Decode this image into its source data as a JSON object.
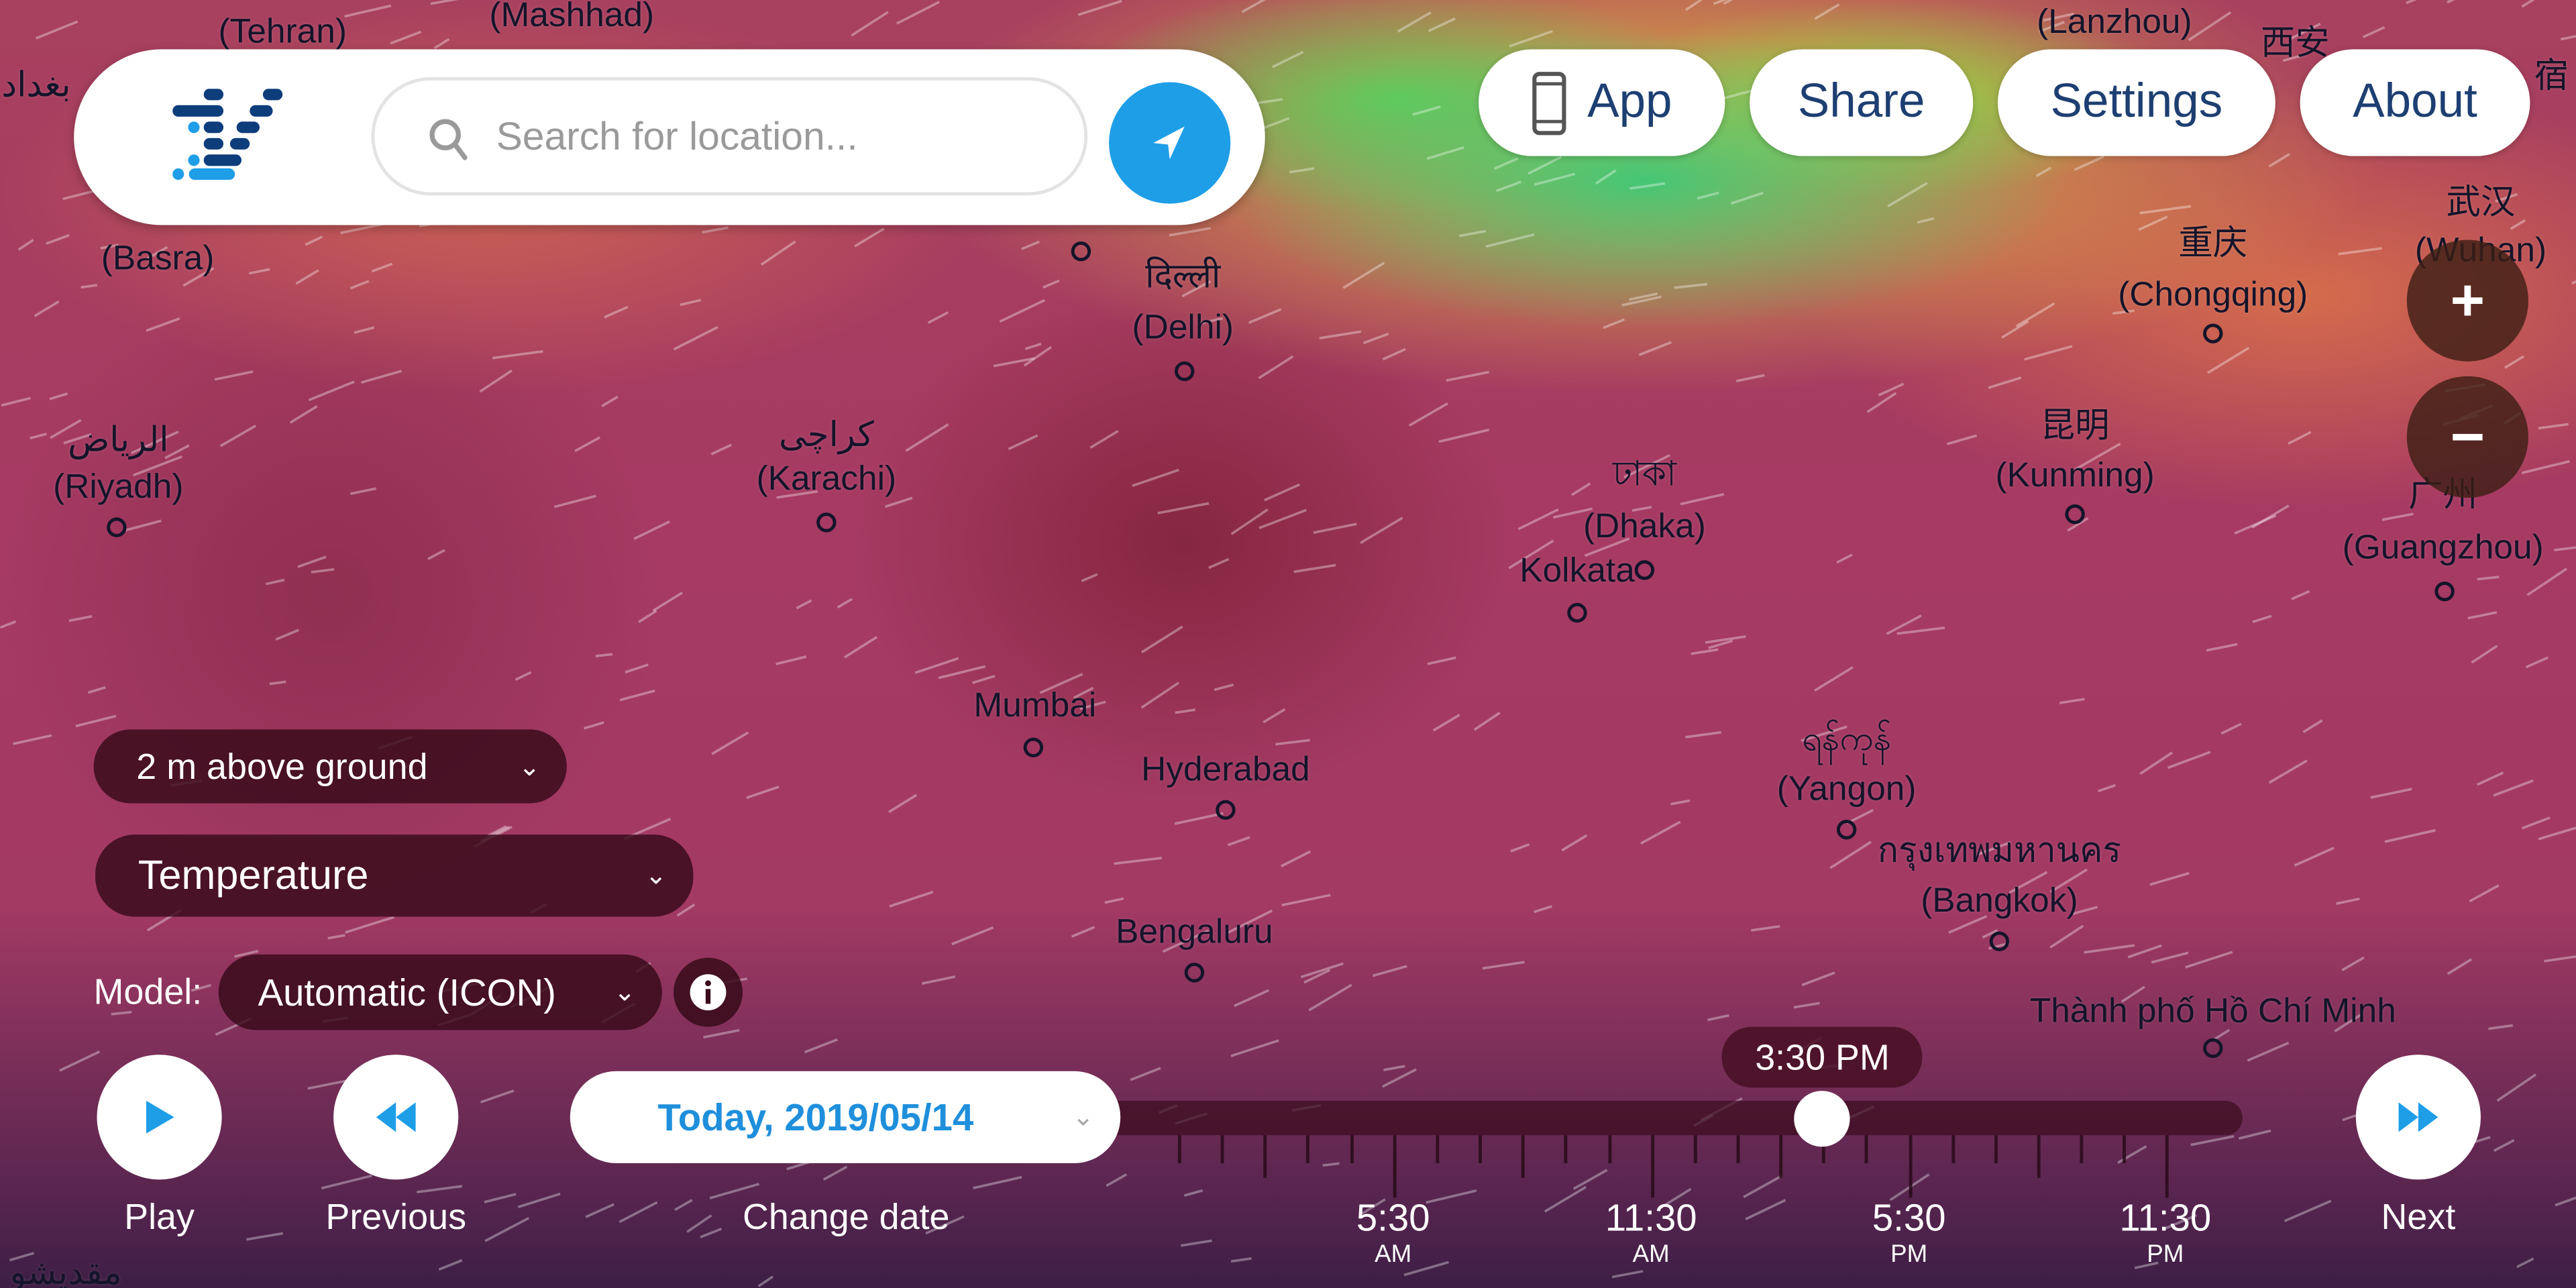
{
  "search": {
    "placeholder": "Search for location..."
  },
  "header": {
    "app": "App",
    "share": "Share",
    "settings": "Settings",
    "about": "About"
  },
  "zoom": {
    "in": "+",
    "out": "−"
  },
  "controls": {
    "level": "2 m above ground",
    "variable": "Temperature",
    "model_label": "Model:",
    "model": "Automatic (ICON)",
    "play": "Play",
    "previous": "Previous",
    "change_date": "Change date",
    "next": "Next",
    "date": "Today, 2019/05/14"
  },
  "timeline": {
    "current": "3:30 PM",
    "selected_hour": 15.5,
    "labels": [
      {
        "time": "5:30",
        "ampm": "AM"
      },
      {
        "time": "11:30",
        "ampm": "AM"
      },
      {
        "time": "5:30",
        "ampm": "PM"
      },
      {
        "time": "11:30",
        "ampm": "PM"
      }
    ]
  },
  "cities": [
    {
      "name": "(Tehran)"
    },
    {
      "name": "(Mashhad)"
    },
    {
      "name": "بغداد"
    },
    {
      "name": "(Basra)"
    },
    {
      "name": "الرياض"
    },
    {
      "name": "(Riyadh)"
    },
    {
      "name": "کراچی"
    },
    {
      "name": "(Karachi)"
    },
    {
      "name": "दिल्ली"
    },
    {
      "name": "(Delhi)"
    },
    {
      "name": "(Lanzhou)"
    },
    {
      "name": "西安"
    },
    {
      "name": "武汉"
    },
    {
      "name": "(Wuhan)"
    },
    {
      "name": "重庆"
    },
    {
      "name": "(Chongqing)"
    },
    {
      "name": "昆明"
    },
    {
      "name": "(Kunming)"
    },
    {
      "name": "广州"
    },
    {
      "name": "(Guangzhou)"
    },
    {
      "name": "ঢাকা"
    },
    {
      "name": "(Dhaka)"
    },
    {
      "name": "Kolkata"
    },
    {
      "name": "Mumbai"
    },
    {
      "name": "Hyderabad"
    },
    {
      "name": "Bengaluru"
    },
    {
      "name": "ရန်ကုန်"
    },
    {
      "name": "(Yangon)"
    },
    {
      "name": "กรุงเทพมหานคร"
    },
    {
      "name": "(Bangkok)"
    },
    {
      "name": "Thành phố Hồ Chí Minh"
    },
    {
      "name": "مقديشو"
    },
    {
      "name": "宿"
    }
  ],
  "colors": {
    "accent": "#1f9ee8",
    "brand_dark": "#0d3d7a",
    "button_text": "#1d3f72"
  }
}
